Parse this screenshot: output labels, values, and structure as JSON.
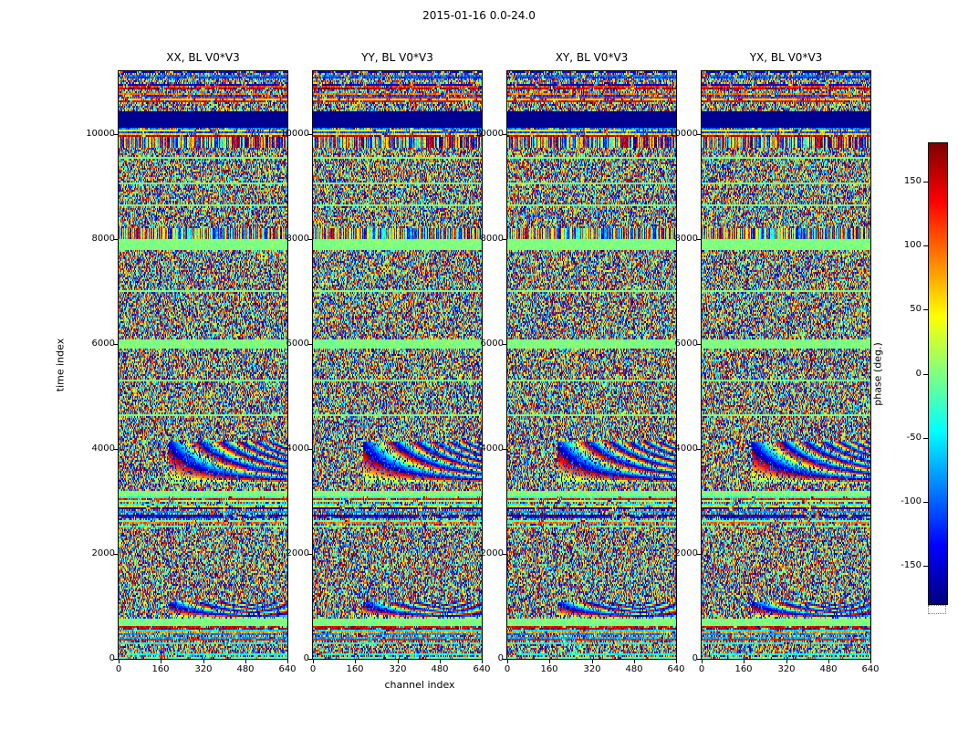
{
  "figure": {
    "title": "2015-01-16 0.0-24.0",
    "xlabel": "channel index",
    "ylabel": "time index",
    "colorbar_label": "phase (deg.)",
    "background": "#ffffff"
  },
  "chart_data": {
    "type": "heatmap",
    "title": "2015-01-16 0.0-24.0",
    "xlabel": "channel index",
    "ylabel": "time index",
    "colormap": "jet",
    "value_label": "phase (deg.)",
    "value_range": [
      -180,
      180
    ],
    "x_range": [
      0,
      640
    ],
    "x_ticks": [
      0,
      160,
      320,
      480,
      640
    ],
    "y_range": [
      0,
      11200
    ],
    "y_ticks": [
      0,
      2000,
      4000,
      6000,
      8000,
      10000
    ],
    "colorbar_ticks": [
      {
        "label": "150",
        "value": 150
      },
      {
        "label": "100",
        "value": 100
      },
      {
        "label": "50",
        "value": 50
      },
      {
        "label": "0",
        "value": 0
      },
      {
        "label": "-50",
        "value": -50
      },
      {
        "label": "-100",
        "value": -100
      },
      {
        "label": "-150",
        "value": -150
      }
    ],
    "panels": [
      {
        "title": "XX, BL V0*V3",
        "seed": 11
      },
      {
        "title": "YY, BL V0*V3",
        "seed": 23
      },
      {
        "title": "XY, BL V0*V3",
        "seed": 37
      },
      {
        "title": "YX, BL V0*V3",
        "seed": 49
      }
    ],
    "default_band": "noise",
    "time_bands": [
      {
        "t0": 11040,
        "t1": 11200,
        "kind": "stripes"
      },
      {
        "t0": 10600,
        "t1": 10940,
        "kind": "stripes"
      },
      {
        "t0": 10130,
        "t1": 10420,
        "kind": "solid_low"
      },
      {
        "t0": 9950,
        "t1": 10130,
        "kind": "stripes"
      },
      {
        "t0": 9740,
        "t1": 9950,
        "kind": "barcode"
      },
      {
        "t0": 9520,
        "t1": 9565,
        "kind": "zero_line"
      },
      {
        "t0": 9050,
        "t1": 9095,
        "kind": "zero_line"
      },
      {
        "t0": 8610,
        "t1": 8655,
        "kind": "zero_line"
      },
      {
        "t0": 8000,
        "t1": 8200,
        "kind": "barcode"
      },
      {
        "t0": 7780,
        "t1": 8000,
        "kind": "zero_band"
      },
      {
        "t0": 6980,
        "t1": 7025,
        "kind": "zero_line"
      },
      {
        "t0": 5920,
        "t1": 6080,
        "kind": "zero_band"
      },
      {
        "t0": 5270,
        "t1": 5315,
        "kind": "zero_line"
      },
      {
        "t0": 4610,
        "t1": 4660,
        "kind": "zero_line"
      },
      {
        "t0": 3350,
        "t1": 4150,
        "kind": "fringe"
      },
      {
        "t0": 3080,
        "t1": 3200,
        "kind": "zero_band"
      },
      {
        "t0": 2480,
        "t1": 3080,
        "kind": "stripes"
      },
      {
        "t0": 780,
        "t1": 1080,
        "kind": "fringe"
      },
      {
        "t0": 630,
        "t1": 770,
        "kind": "zero_band"
      },
      {
        "t0": 290,
        "t1": 630,
        "kind": "stripes"
      },
      {
        "t0": 0,
        "t1": 150,
        "kind": "stripes"
      }
    ]
  }
}
